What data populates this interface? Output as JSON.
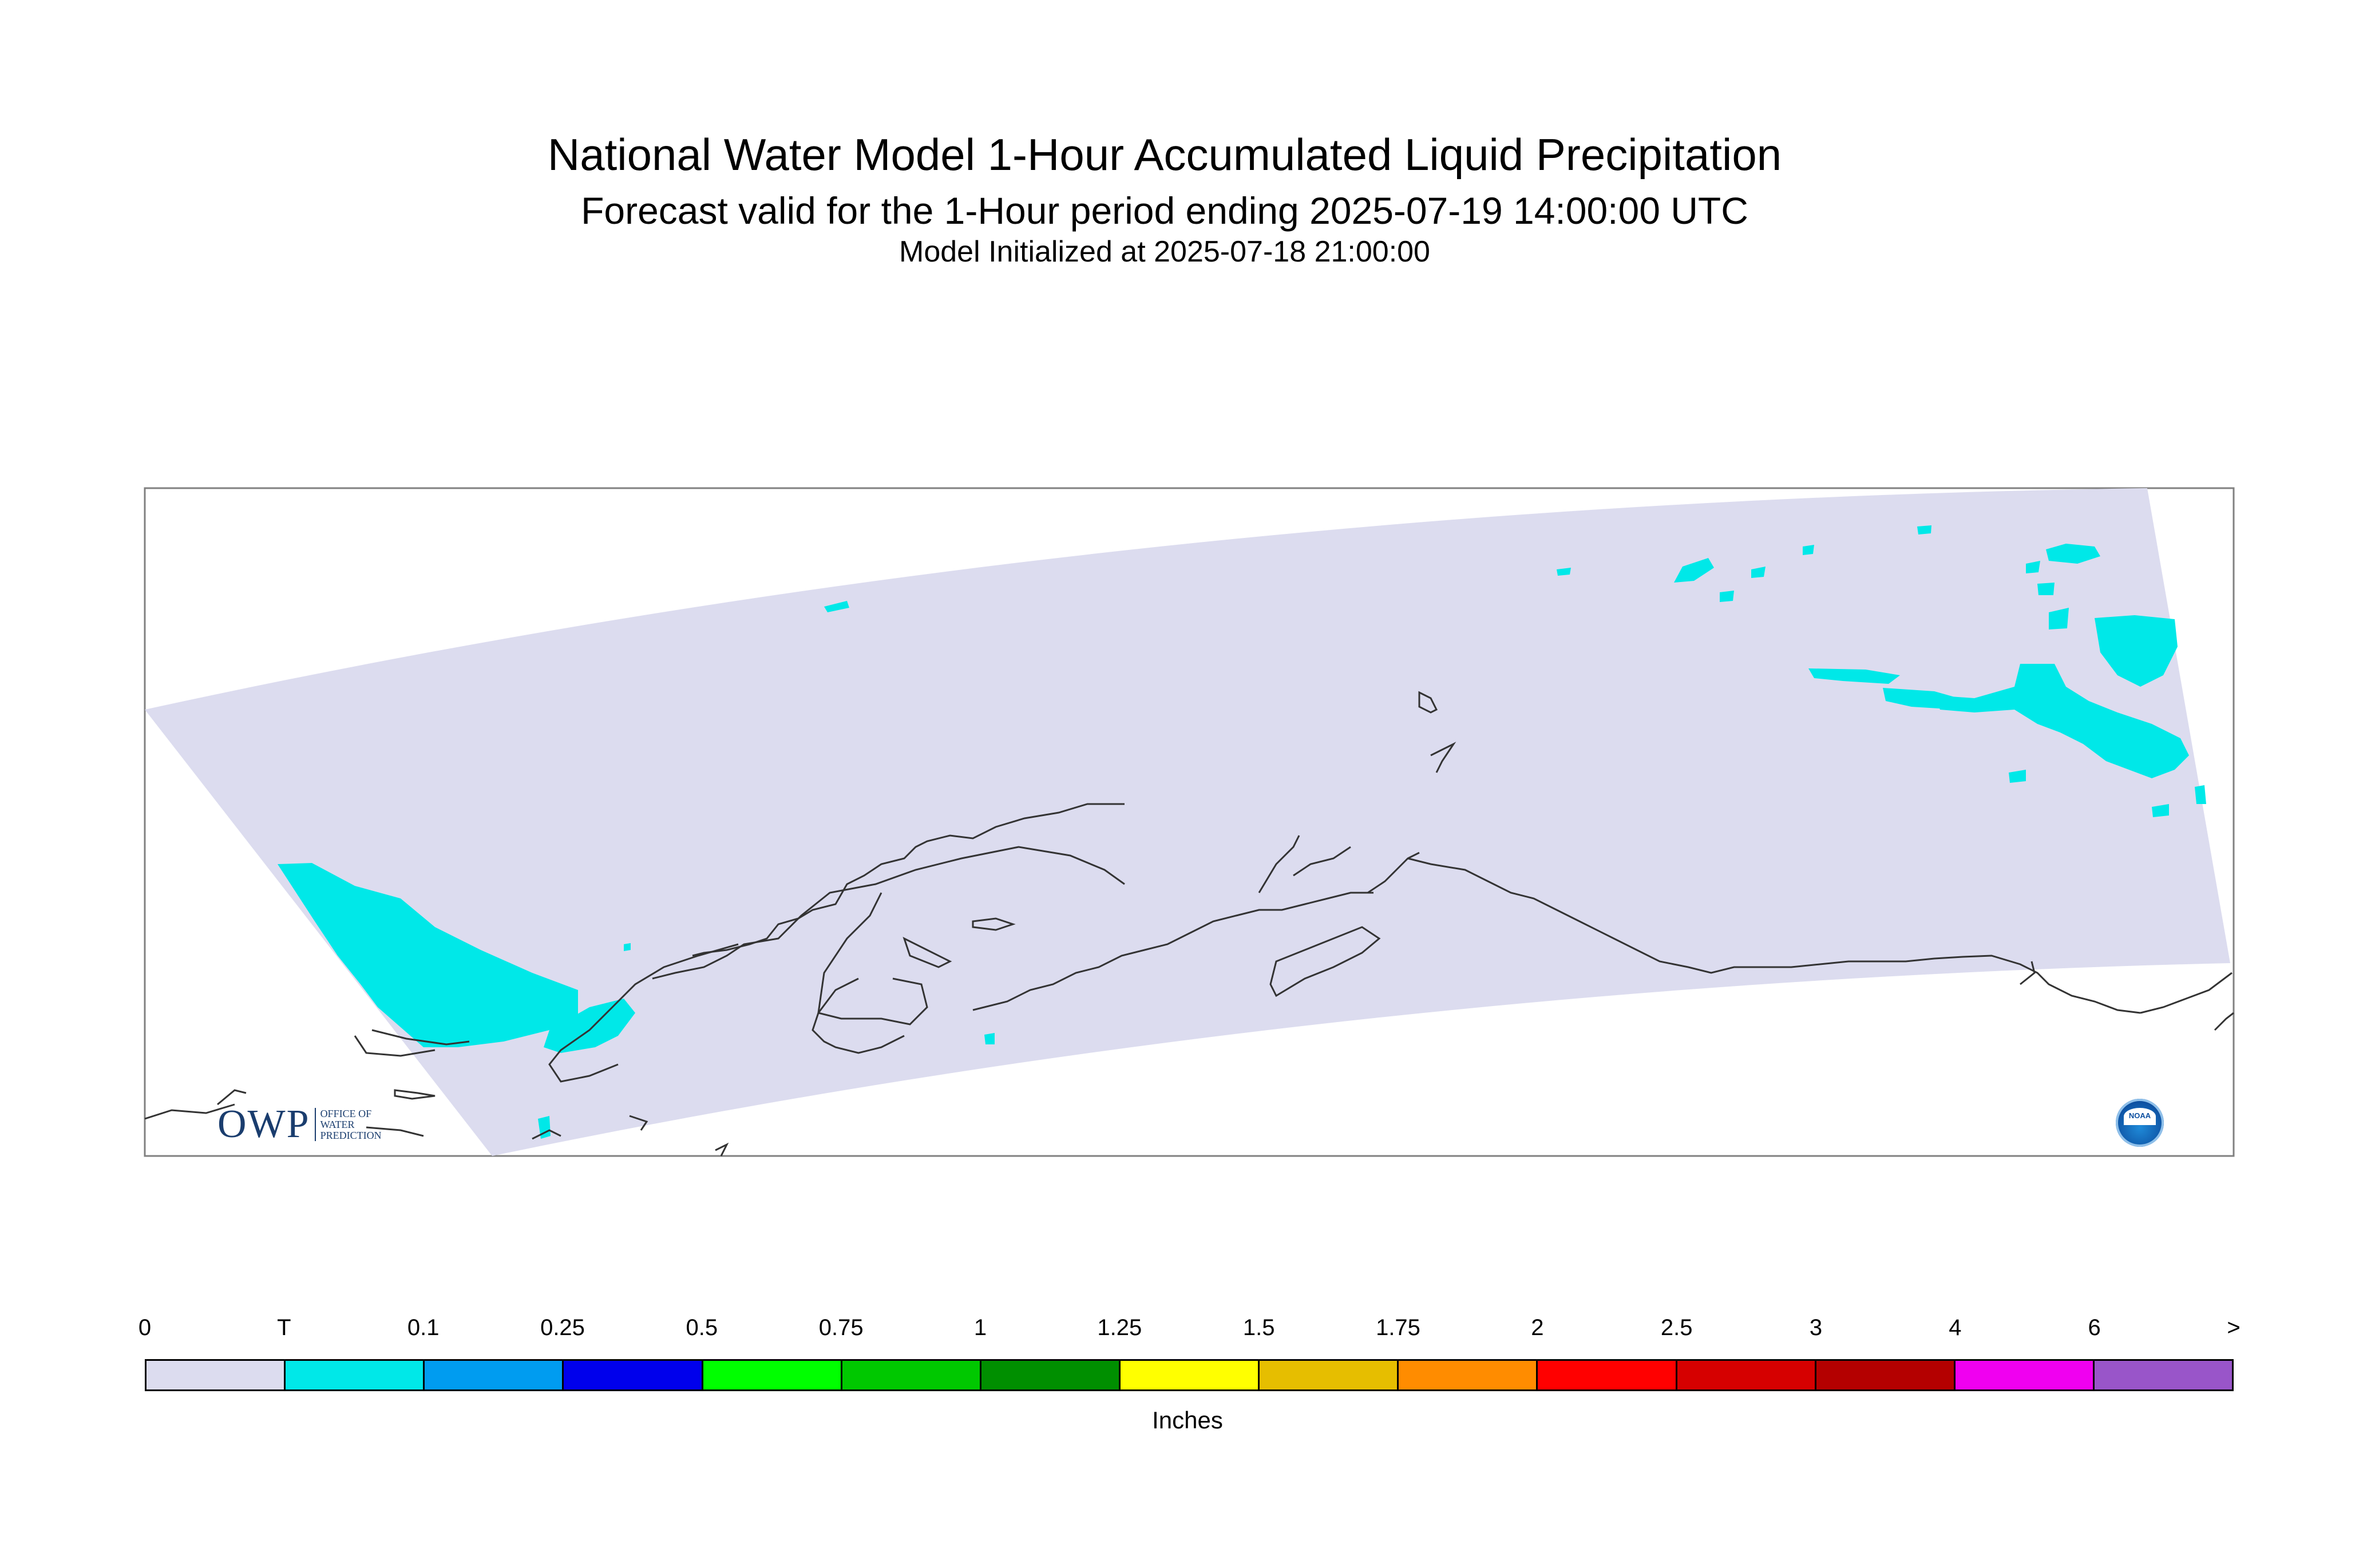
{
  "title": "National Water Model 1-Hour Accumulated Liquid Precipitation",
  "subtitle": "Forecast valid for the 1-Hour period ending 2025-07-19 14:00:00 UTC",
  "init_line": "Model Initialized at 2025-07-18 21:00:00",
  "legend": {
    "unit_label": "Inches",
    "ticks": [
      "0",
      "T",
      "0.1",
      "0.25",
      "0.5",
      "0.75",
      "1",
      "1.25",
      "1.5",
      "1.75",
      "2",
      "2.5",
      "3",
      "4",
      "6",
      ">"
    ],
    "colors": [
      "#dcdcef",
      "#00e8e8",
      "#009cf0",
      "#0000ec",
      "#00ff00",
      "#00c800",
      "#008f00",
      "#ffff00",
      "#e6be00",
      "#ff8c00",
      "#ff0000",
      "#d60000",
      "#b40000",
      "#f000f0",
      "#9955c9"
    ]
  },
  "logos": {
    "owp_text": "OWP",
    "owp_subtext": [
      "OFFICE OF",
      "WATER",
      "PREDICTION"
    ],
    "noaa_text": "NOAA"
  },
  "colors": {
    "domain_fill": "#dcdcef",
    "trace_fill": "#00e8e8",
    "coastline": "#333333"
  }
}
